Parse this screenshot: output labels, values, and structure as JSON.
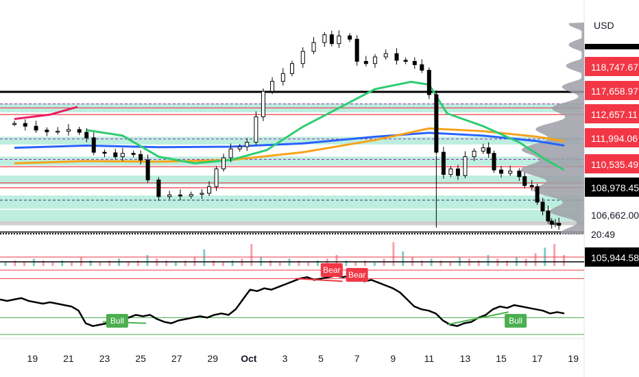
{
  "currency": "USD",
  "timer": "20:49",
  "colors": {
    "band": "#b2ebd9",
    "red_line": "#f23645",
    "dash_line": "#9c27b0",
    "black_line": "#000000",
    "ma_blue": "#2962ff",
    "ma_orange": "#f7a21b",
    "ma_green": "#2ecc71",
    "ma_pink": "#e91e63",
    "candle": "#000000",
    "vol_up": "#80cbc4",
    "vol_down": "#f7a1a8",
    "rsi_line": "#000000",
    "rsi_upper": "#f23645",
    "rsi_lower": "#4caf50",
    "bull_tag": "#4caf50",
    "bear_tag": "#f23645",
    "vp_fill": "#9e9fa7",
    "axis_bg": "#ffffff"
  },
  "chart_data": [
    {
      "type": "candlestick",
      "x": [
        "19",
        "21",
        "23",
        "25",
        "27",
        "29",
        "Oct",
        "3",
        "5",
        "7",
        "9",
        "11",
        "13",
        "15",
        "17",
        "19"
      ],
      "ylim": [
        105700,
        125800
      ],
      "price_tags": [
        {
          "value": "118,747.67",
          "price": 118747.67,
          "style": "red"
        },
        {
          "value": "117,658.97",
          "price": 117658.97,
          "style": "red"
        },
        {
          "value": "112,657.11",
          "price": 112657.11,
          "style": "red"
        },
        {
          "value": "111,994.06",
          "price": 111994.06,
          "style": "red"
        },
        {
          "value": "110,535.49",
          "price": 110535.49,
          "style": "red"
        },
        {
          "value": "108,978.45",
          "price": 108978.45,
          "style": "black"
        },
        {
          "value": "106,662.00",
          "price": 106662.0,
          "style": "plain"
        },
        {
          "value": "105,944.58",
          "price": 105944.58,
          "style": "black"
        }
      ],
      "last_price": 106662.0,
      "series_close": [
        {
          "day": 18.0,
          "close": 115900
        },
        {
          "day": 18.6,
          "close": 115650
        },
        {
          "day": 19.2,
          "close": 115300
        },
        {
          "day": 19.8,
          "close": 115150
        },
        {
          "day": 20.4,
          "close": 115200
        },
        {
          "day": 21.0,
          "close": 115350
        },
        {
          "day": 21.6,
          "close": 115100
        },
        {
          "day": 22.0,
          "close": 114600
        },
        {
          "day": 22.4,
          "close": 113300
        },
        {
          "day": 23.0,
          "close": 113250
        },
        {
          "day": 23.6,
          "close": 112900
        },
        {
          "day": 24.0,
          "close": 113200
        },
        {
          "day": 24.6,
          "close": 113100
        },
        {
          "day": 25.0,
          "close": 112600
        },
        {
          "day": 25.4,
          "close": 110800
        },
        {
          "day": 26.0,
          "close": 109300
        },
        {
          "day": 26.6,
          "close": 109450
        },
        {
          "day": 27.2,
          "close": 109350
        },
        {
          "day": 27.8,
          "close": 109500
        },
        {
          "day": 28.4,
          "close": 109600
        },
        {
          "day": 28.8,
          "close": 110200
        },
        {
          "day": 29.2,
          "close": 111800
        },
        {
          "day": 29.6,
          "close": 112800
        },
        {
          "day": 30.0,
          "close": 113600
        },
        {
          "day": 30.5,
          "close": 113800
        },
        {
          "day": 30.9,
          "close": 114200
        },
        {
          "day": 31.4,
          "close": 116500
        },
        {
          "day": 31.8,
          "close": 118800
        },
        {
          "day": 32.3,
          "close": 119700
        },
        {
          "day": 32.9,
          "close": 120400
        },
        {
          "day": 33.4,
          "close": 121300
        },
        {
          "day": 34.0,
          "close": 122400
        },
        {
          "day": 34.6,
          "close": 123200
        },
        {
          "day": 35.2,
          "close": 123900
        },
        {
          "day": 35.6,
          "close": 123100
        },
        {
          "day": 36.0,
          "close": 123800
        },
        {
          "day": 36.6,
          "close": 123500
        },
        {
          "day": 37.0,
          "close": 121500
        },
        {
          "day": 37.5,
          "close": 121300
        },
        {
          "day": 38.0,
          "close": 121900
        },
        {
          "day": 38.6,
          "close": 122200
        },
        {
          "day": 39.2,
          "close": 121600
        },
        {
          "day": 39.7,
          "close": 121500
        },
        {
          "day": 40.2,
          "close": 121200
        },
        {
          "day": 40.6,
          "close": 120700
        },
        {
          "day": 41.0,
          "close": 118500
        },
        {
          "day": 41.4,
          "close": 113300
        },
        {
          "day": 41.8,
          "close": 111300
        },
        {
          "day": 42.2,
          "close": 111800
        },
        {
          "day": 42.6,
          "close": 111200
        },
        {
          "day": 43.0,
          "close": 112900
        },
        {
          "day": 43.5,
          "close": 113400
        },
        {
          "day": 44.0,
          "close": 113700
        },
        {
          "day": 44.3,
          "close": 113200
        },
        {
          "day": 44.6,
          "close": 111700
        },
        {
          "day": 45.0,
          "close": 111400
        },
        {
          "day": 45.5,
          "close": 111600
        },
        {
          "day": 46.0,
          "close": 111100
        },
        {
          "day": 46.3,
          "close": 110300
        },
        {
          "day": 46.7,
          "close": 110200
        },
        {
          "day": 47.0,
          "close": 108800
        },
        {
          "day": 47.3,
          "close": 108000
        },
        {
          "day": 47.6,
          "close": 107100
        },
        {
          "day": 47.8,
          "close": 106800
        },
        {
          "day": 48.0,
          "close": 106900
        },
        {
          "day": 48.2,
          "close": 106700
        }
      ],
      "levels": [
        {
          "price": 118747.67,
          "style": "black-thick"
        },
        {
          "price": 117658.97,
          "style": "dash"
        },
        {
          "price": 117300,
          "style": "red"
        },
        {
          "price": 116700,
          "style": "red"
        },
        {
          "price": 114500,
          "style": "dash"
        },
        {
          "price": 112657.11,
          "style": "dash"
        },
        {
          "price": 111994.06,
          "style": "red"
        },
        {
          "price": 110535.49,
          "style": "red"
        },
        {
          "price": 110100,
          "style": "red"
        },
        {
          "price": 108978.45,
          "style": "black-dash"
        },
        {
          "price": 106900,
          "style": "grey"
        },
        {
          "price": 106100,
          "style": "black"
        },
        {
          "price": 105944.58,
          "style": "black-dot"
        }
      ],
      "bands": [
        {
          "from": 116900,
          "to": 117700
        },
        {
          "from": 114000,
          "to": 114700
        },
        {
          "from": 112100,
          "to": 112900
        },
        {
          "from": 110400,
          "to": 111200
        },
        {
          "from": 108200,
          "to": 109400
        },
        {
          "from": 107100,
          "to": 108100
        }
      ],
      "moving_averages": [
        {
          "color_key": "ma_blue",
          "points": [
            [
              18.0,
              113700
            ],
            [
              22,
              113900
            ],
            [
              26,
              113750
            ],
            [
              30,
              113800
            ],
            [
              34,
              114100
            ],
            [
              38,
              114700
            ],
            [
              41,
              115050
            ],
            [
              44,
              114800
            ],
            [
              47,
              114300
            ],
            [
              48.5,
              113900
            ]
          ]
        },
        {
          "color_key": "ma_orange",
          "points": [
            [
              18.0,
              112300
            ],
            [
              22,
              112500
            ],
            [
              26,
              112450
            ],
            [
              30,
              112600
            ],
            [
              34,
              113300
            ],
            [
              38,
              114400
            ],
            [
              41,
              115450
            ],
            [
              44,
              115200
            ],
            [
              47,
              114700
            ],
            [
              48.5,
              114300
            ]
          ]
        },
        {
          "color_key": "ma_green",
          "points": [
            [
              22.0,
              115300
            ],
            [
              24,
              114800
            ],
            [
              26,
              112900
            ],
            [
              28,
              112300
            ],
            [
              30,
              112600
            ],
            [
              32,
              113500
            ],
            [
              34,
              115600
            ],
            [
              36,
              117300
            ],
            [
              38,
              119000
            ],
            [
              40,
              119650
            ],
            [
              41,
              119400
            ],
            [
              42,
              116800
            ],
            [
              44,
              115650
            ],
            [
              46,
              114200
            ],
            [
              47.5,
              112600
            ],
            [
              48.5,
              111700
            ]
          ]
        },
        {
          "color_key": "ma_pink",
          "points": [
            [
              18.0,
              116300
            ],
            [
              20,
              116700
            ],
            [
              21.5,
              117400
            ]
          ]
        }
      ]
    },
    {
      "type": "bar",
      "name": "volume",
      "values": [
        2,
        3,
        2,
        4,
        3,
        2,
        3,
        2,
        5,
        3,
        2,
        3,
        4,
        2,
        3,
        6,
        4,
        3,
        2,
        3,
        5,
        9,
        3,
        2,
        3,
        4,
        12,
        5,
        3,
        2,
        4,
        3,
        2,
        3,
        4,
        6,
        3,
        2,
        3,
        2,
        4,
        13,
        8,
        5,
        3,
        4,
        3,
        2,
        5,
        4,
        3,
        6,
        4,
        3,
        5,
        4,
        7,
        10,
        12,
        6
      ],
      "ylim": [
        0,
        15
      ]
    },
    {
      "type": "line",
      "name": "rsi",
      "values": [
        55,
        54,
        55,
        56,
        54,
        53,
        52,
        53,
        52,
        51,
        50,
        47,
        38,
        36,
        37,
        38,
        40,
        41,
        42,
        44,
        43,
        44,
        41,
        39,
        38,
        40,
        41,
        42,
        43,
        42,
        44,
        45,
        44,
        48,
        55,
        62,
        61,
        63,
        62,
        64,
        66,
        68,
        70,
        71,
        69,
        70,
        71,
        72,
        71,
        72,
        70,
        68,
        69,
        67,
        65,
        63,
        60,
        55,
        50,
        48,
        47,
        45,
        40,
        37,
        36,
        38,
        39,
        42,
        44,
        48,
        50,
        49,
        51,
        50,
        49,
        48,
        47,
        45,
        46,
        45
      ],
      "ylim": [
        28,
        78
      ],
      "upper": 70,
      "lower": 30,
      "mid": 50
    }
  ],
  "markers": [
    {
      "label": "Bull",
      "kind": "bull"
    },
    {
      "label": "Bear",
      "kind": "bear"
    },
    {
      "label": "Bear",
      "kind": "bear"
    },
    {
      "label": "Bull",
      "kind": "bull"
    }
  ]
}
